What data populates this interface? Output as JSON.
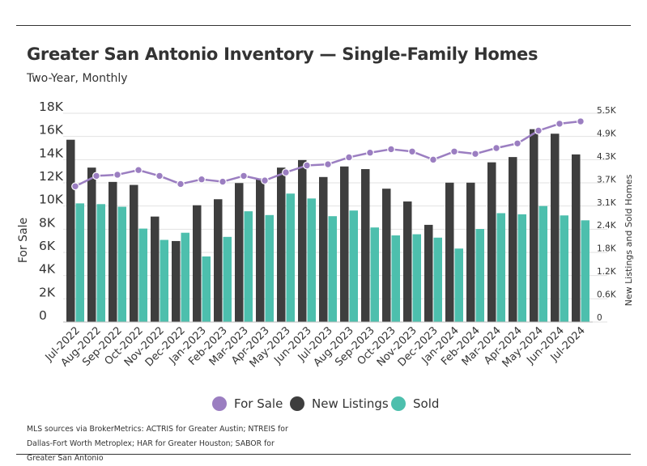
{
  "header": {
    "title": "Greater San Antonio Inventory — Single-Family Homes",
    "subtitle": "Two-Year, Monthly"
  },
  "legend": [
    {
      "label": "For Sale",
      "color": "#9b7ec1"
    },
    {
      "label": "New Listings",
      "color": "#3e3e3e"
    },
    {
      "label": "Sold",
      "color": "#4dbfad"
    }
  ],
  "source": "MLS sources via BrokerMetrics: ACTRIS for Greater Austin; NTREIS for Dallas-Fort Worth Metroplex; HAR for Greater Houston; SABOR for Greater San Antonio",
  "chart_data": {
    "type": "bar",
    "title": "Greater San Antonio Inventory — Single-Family Homes",
    "subtitle": "Two-Year, Monthly",
    "categories": [
      "Jul-2022",
      "Aug-2022",
      "Sep-2022",
      "Oct-2022",
      "Nov-2022",
      "Dec-2022",
      "Jan-2023",
      "Feb-2023",
      "Mar-2023",
      "Apr-2023",
      "May-2023",
      "Jun-2023",
      "Jul-2023",
      "Aug-2023",
      "Sep-2023",
      "Oct-2023",
      "Nov-2023",
      "Dec-2023",
      "Jan-2024",
      "Feb-2024",
      "Mar-2024",
      "Apr-2024",
      "May-2024",
      "Jun-2024",
      "Jul-2024"
    ],
    "ylabel": "For Sale",
    "y2label": "New Listings and Sold Homes",
    "y_ticks": [
      "0",
      "2K",
      "4K",
      "6K",
      "8K",
      "10K",
      "12K",
      "14K",
      "16K",
      "18K"
    ],
    "y2_ticks": [
      "0",
      "0.6K",
      "1.2K",
      "1.8K",
      "2.4K",
      "3.1K",
      "3.7K",
      "4.3K",
      "4.9K",
      "5.5K"
    ],
    "ylim": [
      0,
      18000
    ],
    "y2lim": [
      0,
      5500
    ],
    "series": [
      {
        "name": "For Sale",
        "type": "line",
        "axis": "left",
        "color": "#9b7ec1",
        "values": [
          11700,
          12600,
          12700,
          13100,
          12600,
          11900,
          12300,
          12100,
          12600,
          12200,
          12900,
          13500,
          13600,
          14200,
          14600,
          14900,
          14700,
          14000,
          14700,
          14500,
          15000,
          15400,
          16500,
          17100,
          17300
        ]
      },
      {
        "name": "New Listings",
        "type": "bar",
        "axis": "right",
        "color": "#3e3e3e",
        "values": [
          4840,
          4100,
          3720,
          3640,
          2800,
          2150,
          3100,
          3260,
          3690,
          3810,
          4100,
          4300,
          3850,
          4130,
          4060,
          3540,
          3200,
          2580,
          3700,
          3700,
          4240,
          4380,
          5120,
          5000,
          4450
        ]
      },
      {
        "name": "Sold",
        "type": "bar",
        "axis": "right",
        "color": "#4dbfad",
        "values": [
          3150,
          3130,
          3060,
          2480,
          2180,
          2370,
          1740,
          2260,
          2940,
          2840,
          3410,
          3280,
          2810,
          2960,
          2510,
          2300,
          2330,
          2240,
          1950,
          2470,
          2890,
          2860,
          3080,
          2830,
          2700
        ]
      }
    ],
    "grid": true,
    "legend_position": "bottom"
  }
}
